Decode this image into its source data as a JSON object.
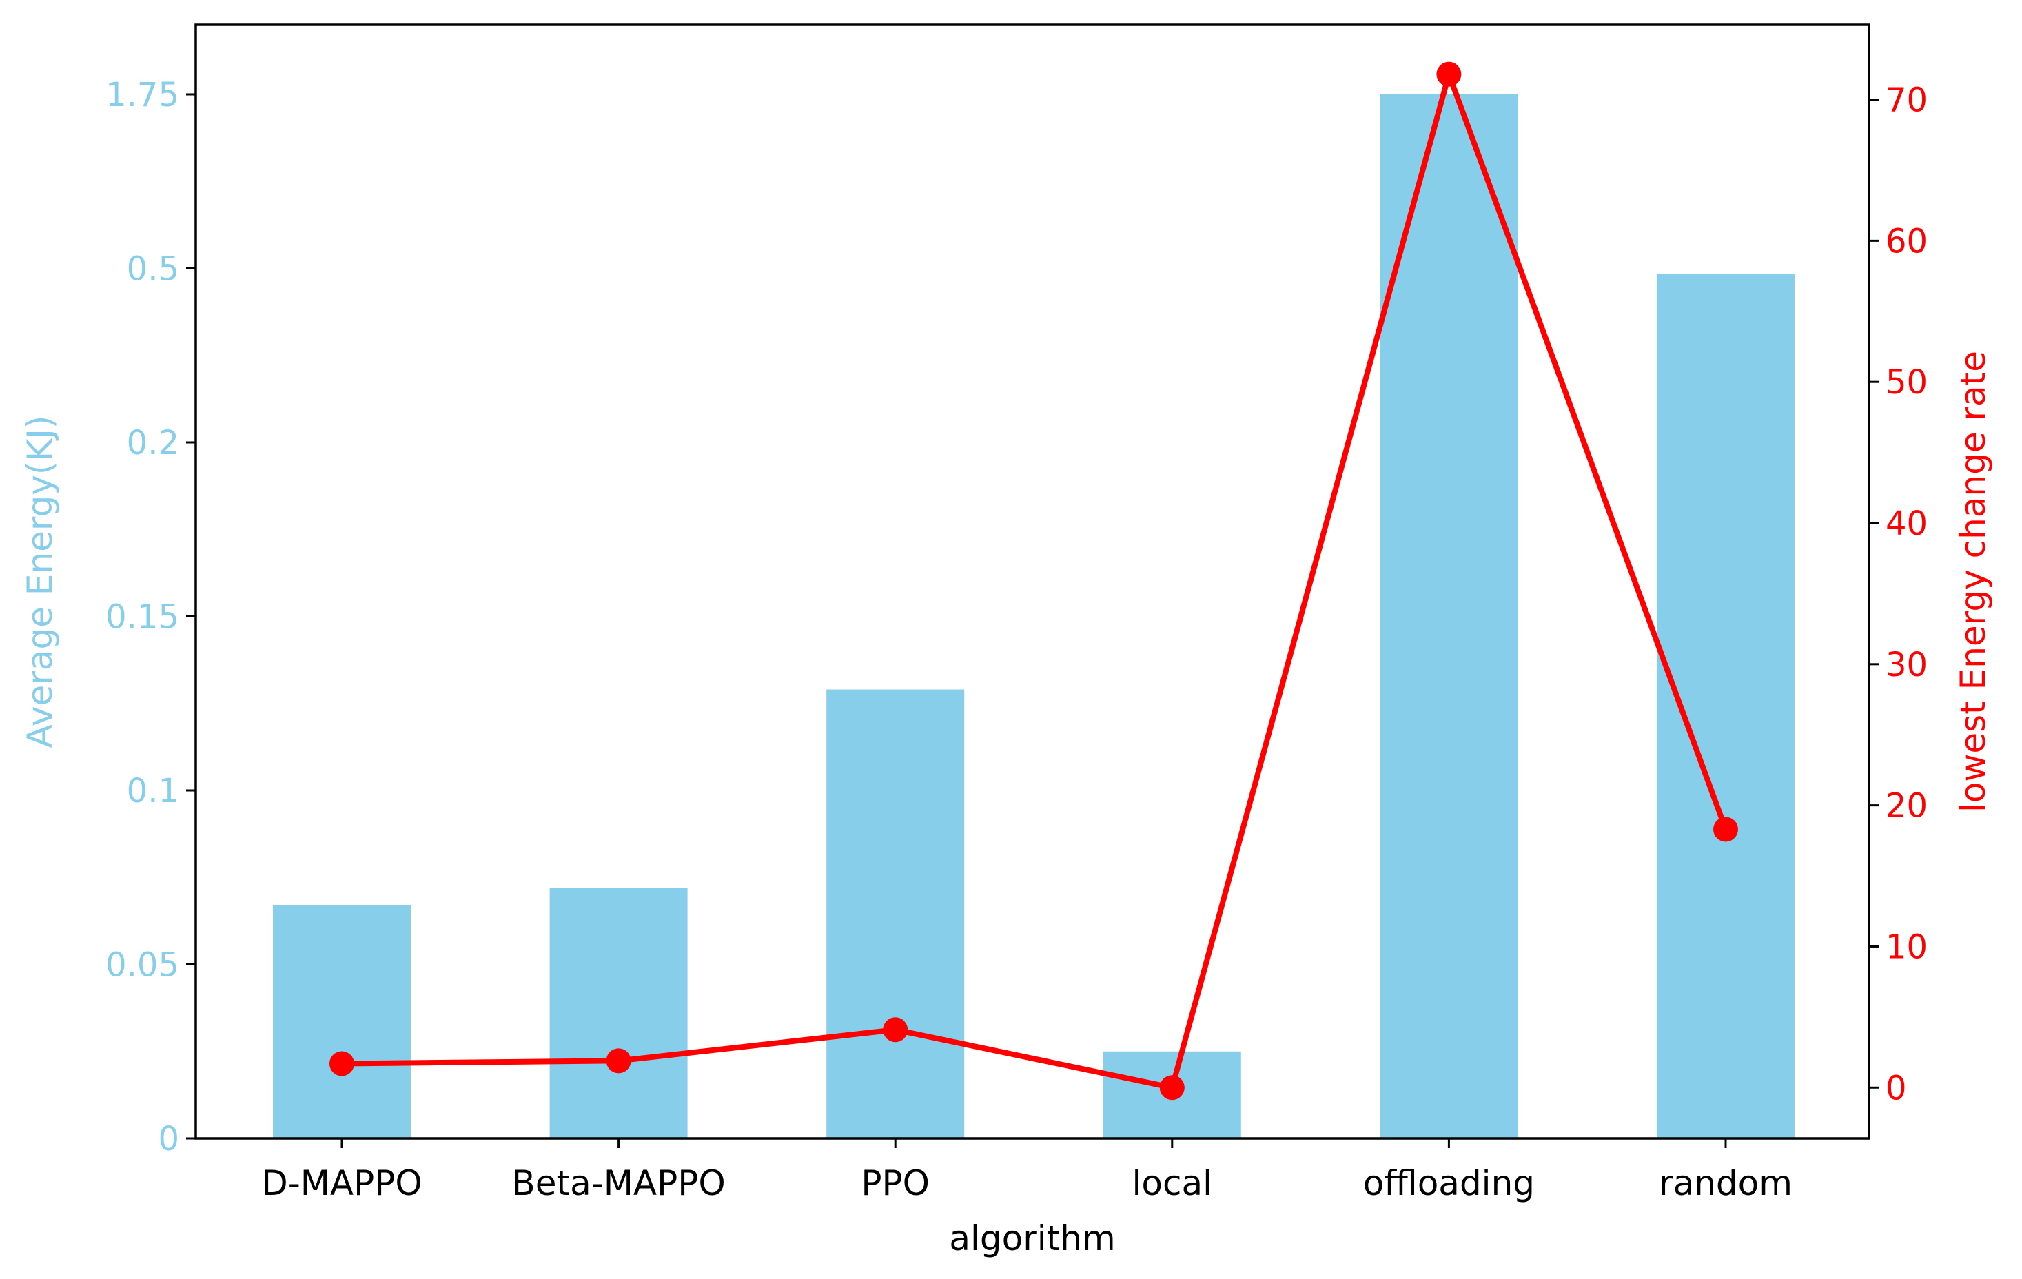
{
  "chart_data": {
    "type": "bar",
    "xlabel": "algorithm",
    "categories": [
      "D-MAPPO",
      "Beta-MAPPO",
      "PPO",
      "local",
      "offloading",
      "random"
    ],
    "left_axis": {
      "label": "Average Energy(KJ)",
      "color": "#87ceeb",
      "ticks": [
        "0",
        "0.05",
        "0.1",
        "0.15",
        "0.2",
        "0.5",
        "1.75"
      ],
      "scale": "piecewise (tick labels evenly spaced)"
    },
    "right_axis": {
      "label": "lowest Energy change rate",
      "color": "#ff0000",
      "ticks": [
        0,
        10,
        20,
        30,
        40,
        50,
        60,
        70
      ],
      "ylim": [
        -3.6,
        75.3
      ]
    },
    "series": [
      {
        "type": "bar",
        "axis": "left",
        "color": "#87ceeb",
        "values": [
          0.067,
          0.072,
          0.129,
          0.025,
          1.77,
          0.49
        ]
      },
      {
        "type": "line",
        "axis": "right",
        "color": "#ff0000",
        "marker": "circle",
        "values": [
          1.7,
          1.9,
          4.1,
          0.0,
          71.8,
          18.3
        ]
      }
    ],
    "grid": false,
    "legend": "none"
  }
}
